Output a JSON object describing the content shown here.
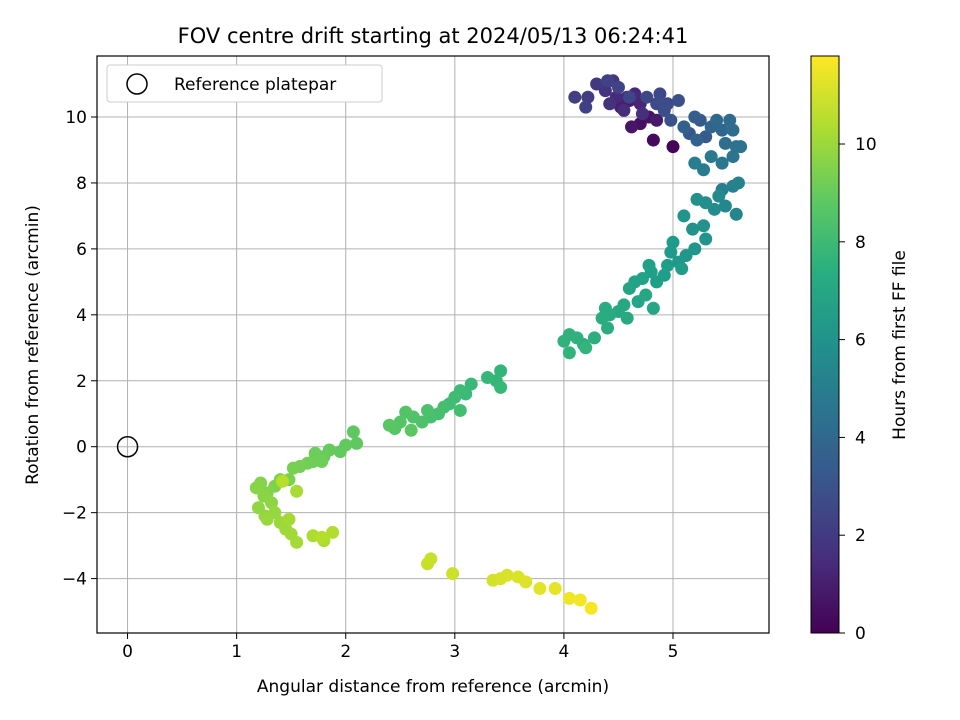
{
  "chart_data": {
    "type": "scatter",
    "title": "FOV centre drift starting at 2024/05/13 06:24:41",
    "xlabel": "Angular distance from reference (arcmin)",
    "ylabel": "Rotation from reference (arcmin)",
    "xlim": [
      -0.28,
      5.88
    ],
    "ylim": [
      -5.65,
      11.85
    ],
    "grid": true,
    "x_ticks": [
      0,
      1,
      2,
      3,
      4,
      5
    ],
    "y_ticks": [
      -4,
      -2,
      0,
      2,
      4,
      6,
      8,
      10
    ],
    "legend": {
      "placement": "top-left",
      "entries": [
        {
          "label": "Reference platepar",
          "marker": "hollow-circle"
        }
      ]
    },
    "reference_point": {
      "x": 0,
      "y": 0
    },
    "colorbar": {
      "label": "Hours from first FF file",
      "colormap": "viridis",
      "range": [
        0,
        11.8
      ],
      "ticks": [
        0,
        2,
        4,
        6,
        8,
        10
      ]
    },
    "points": [
      [
        5.0,
        9.1,
        0.1
      ],
      [
        4.82,
        9.3,
        0.3
      ],
      [
        4.7,
        9.8,
        0.5
      ],
      [
        4.78,
        10.0,
        0.6
      ],
      [
        4.62,
        9.7,
        0.7
      ],
      [
        4.85,
        9.9,
        0.8
      ],
      [
        4.6,
        10.5,
        0.9
      ],
      [
        4.52,
        10.3,
        1.0
      ],
      [
        4.58,
        10.6,
        1.1
      ],
      [
        4.7,
        10.4,
        1.2
      ],
      [
        4.65,
        10.7,
        1.3
      ],
      [
        4.48,
        10.6,
        1.4
      ],
      [
        4.55,
        10.2,
        1.5
      ],
      [
        4.72,
        10.1,
        1.6
      ],
      [
        4.42,
        10.4,
        1.7
      ],
      [
        4.38,
        10.8,
        1.8
      ],
      [
        4.45,
        11.1,
        1.9
      ],
      [
        4.3,
        11.0,
        2.0
      ],
      [
        4.22,
        10.6,
        2.1
      ],
      [
        4.1,
        10.6,
        2.2
      ],
      [
        4.2,
        10.3,
        2.3
      ],
      [
        4.4,
        11.1,
        2.35
      ],
      [
        4.5,
        10.9,
        2.4
      ],
      [
        4.6,
        10.6,
        2.5
      ],
      [
        4.76,
        10.6,
        2.55
      ],
      [
        4.88,
        10.7,
        2.6
      ],
      [
        4.95,
        10.4,
        2.7
      ],
      [
        4.85,
        10.4,
        2.75
      ],
      [
        4.92,
        10.2,
        2.8
      ],
      [
        5.05,
        10.5,
        2.9
      ],
      [
        4.98,
        9.9,
        3.0
      ],
      [
        5.15,
        9.5,
        3.2
      ],
      [
        5.25,
        9.9,
        3.3
      ],
      [
        5.3,
        9.4,
        3.4
      ],
      [
        5.2,
        10.0,
        3.5
      ],
      [
        5.1,
        9.7,
        3.6
      ],
      [
        5.22,
        9.3,
        3.7
      ],
      [
        5.35,
        9.7,
        3.8
      ],
      [
        5.45,
        9.6,
        3.9
      ],
      [
        5.4,
        9.9,
        4.0
      ],
      [
        5.52,
        9.9,
        4.1
      ],
      [
        5.55,
        9.6,
        4.2
      ],
      [
        5.48,
        9.2,
        4.3
      ],
      [
        5.58,
        9.1,
        4.4
      ],
      [
        5.62,
        9.1,
        4.5
      ],
      [
        5.55,
        8.8,
        4.6
      ],
      [
        5.45,
        8.6,
        4.7
      ],
      [
        5.35,
        8.8,
        4.8
      ],
      [
        5.28,
        8.4,
        4.9
      ],
      [
        5.2,
        8.6,
        5.0
      ],
      [
        5.45,
        7.8,
        5.1
      ],
      [
        5.55,
        7.9,
        5.2
      ],
      [
        5.6,
        8.0,
        5.3
      ],
      [
        5.58,
        7.05,
        5.4
      ],
      [
        5.48,
        7.3,
        5.5
      ],
      [
        5.42,
        7.6,
        5.6
      ],
      [
        5.38,
        7.2,
        5.7
      ],
      [
        5.3,
        7.4,
        5.8
      ],
      [
        5.22,
        7.5,
        5.9
      ],
      [
        5.28,
        6.7,
        6.0
      ],
      [
        5.18,
        6.6,
        6.05
      ],
      [
        5.1,
        7.0,
        6.1
      ],
      [
        5.3,
        6.3,
        6.15
      ],
      [
        5.2,
        6.0,
        6.2
      ],
      [
        5.12,
        5.8,
        6.25
      ],
      [
        5.05,
        5.6,
        6.3
      ],
      [
        4.98,
        5.9,
        6.35
      ],
      [
        5.0,
        6.2,
        6.4
      ],
      [
        5.08,
        5.4,
        6.45
      ],
      [
        4.95,
        5.5,
        6.5
      ],
      [
        4.92,
        5.2,
        6.55
      ],
      [
        4.85,
        5.0,
        6.6
      ],
      [
        4.8,
        5.3,
        6.65
      ],
      [
        4.78,
        5.5,
        6.7
      ],
      [
        4.72,
        5.1,
        6.75
      ],
      [
        4.65,
        5.0,
        6.8
      ],
      [
        4.6,
        4.8,
        6.85
      ],
      [
        4.68,
        4.4,
        6.9
      ],
      [
        4.75,
        4.6,
        6.95
      ],
      [
        4.82,
        4.2,
        7.0
      ],
      [
        4.55,
        4.3,
        7.05
      ],
      [
        4.5,
        4.1,
        7.1
      ],
      [
        4.58,
        3.9,
        7.15
      ],
      [
        4.42,
        4.0,
        7.2
      ],
      [
        4.38,
        4.2,
        7.25
      ],
      [
        4.35,
        3.9,
        7.3
      ],
      [
        4.4,
        3.6,
        7.35
      ],
      [
        4.28,
        3.3,
        7.4
      ],
      [
        4.18,
        3.1,
        7.45
      ],
      [
        4.12,
        3.3,
        7.5
      ],
      [
        4.05,
        3.4,
        7.55
      ],
      [
        4.0,
        3.2,
        7.6
      ],
      [
        4.05,
        2.85,
        7.65
      ],
      [
        4.2,
        3.0,
        7.7
      ],
      [
        3.42,
        2.3,
        7.75
      ],
      [
        3.38,
        2.0,
        7.8
      ],
      [
        3.3,
        2.1,
        7.85
      ],
      [
        3.42,
        1.8,
        7.9
      ],
      [
        3.15,
        1.9,
        7.95
      ],
      [
        3.1,
        1.6,
        8.0
      ],
      [
        3.05,
        1.7,
        8.05
      ],
      [
        3.0,
        1.5,
        8.1
      ],
      [
        2.95,
        1.3,
        8.15
      ],
      [
        3.05,
        1.1,
        8.2
      ],
      [
        2.9,
        1.2,
        8.25
      ],
      [
        2.85,
        1.0,
        8.3
      ],
      [
        2.78,
        0.9,
        8.35
      ],
      [
        2.75,
        1.1,
        8.4
      ],
      [
        2.7,
        0.75,
        8.45
      ],
      [
        2.62,
        0.9,
        8.5
      ],
      [
        2.55,
        1.05,
        8.55
      ],
      [
        2.5,
        0.75,
        8.6
      ],
      [
        2.45,
        0.55,
        8.65
      ],
      [
        2.4,
        0.65,
        8.7
      ],
      [
        2.6,
        0.5,
        8.75
      ],
      [
        2.07,
        0.45,
        8.8
      ],
      [
        2.1,
        0.1,
        8.85
      ],
      [
        2.0,
        0.05,
        8.9
      ],
      [
        1.95,
        -0.15,
        8.95
      ],
      [
        1.85,
        -0.1,
        9.0
      ],
      [
        1.8,
        -0.3,
        9.05
      ],
      [
        1.72,
        -0.2,
        9.1
      ],
      [
        1.7,
        -0.45,
        9.15
      ],
      [
        1.78,
        -0.45,
        9.2
      ],
      [
        1.65,
        -0.5,
        9.25
      ],
      [
        1.58,
        -0.6,
        9.3
      ],
      [
        1.52,
        -0.65,
        9.35
      ],
      [
        1.48,
        -1.0,
        9.4
      ],
      [
        1.4,
        -1.0,
        9.45
      ],
      [
        1.35,
        -1.2,
        9.5
      ],
      [
        1.28,
        -1.4,
        9.55
      ],
      [
        1.22,
        -1.1,
        9.6
      ],
      [
        1.18,
        -1.25,
        9.65
      ],
      [
        1.25,
        -1.5,
        9.7
      ],
      [
        1.32,
        -1.7,
        9.75
      ],
      [
        1.2,
        -1.85,
        9.8
      ],
      [
        1.26,
        -2.1,
        9.85
      ],
      [
        1.35,
        -2.0,
        9.9
      ],
      [
        1.28,
        -2.2,
        9.95
      ],
      [
        1.4,
        -2.3,
        10.0
      ],
      [
        1.45,
        -2.5,
        10.05
      ],
      [
        1.5,
        -2.65,
        10.1
      ],
      [
        1.55,
        -2.9,
        10.15
      ],
      [
        1.48,
        -2.2,
        10.2
      ],
      [
        1.55,
        -1.35,
        10.25
      ],
      [
        1.7,
        -2.7,
        10.3
      ],
      [
        1.8,
        -2.85,
        10.35
      ],
      [
        1.88,
        -2.6,
        10.4
      ],
      [
        1.78,
        -2.75,
        10.45
      ],
      [
        1.42,
        -1.05,
        10.5
      ],
      [
        2.75,
        -3.55,
        10.8
      ],
      [
        2.78,
        -3.4,
        10.85
      ],
      [
        2.98,
        -3.85,
        10.9
      ],
      [
        3.35,
        -4.05,
        11.0
      ],
      [
        3.42,
        -4.0,
        11.05
      ],
      [
        3.48,
        -3.9,
        11.1
      ],
      [
        3.58,
        -3.95,
        11.15
      ],
      [
        3.65,
        -4.1,
        11.2
      ],
      [
        3.78,
        -4.3,
        11.3
      ],
      [
        3.92,
        -4.3,
        11.4
      ],
      [
        4.05,
        -4.6,
        11.5
      ],
      [
        4.15,
        -4.65,
        11.6
      ],
      [
        4.25,
        -4.9,
        11.7
      ]
    ]
  }
}
